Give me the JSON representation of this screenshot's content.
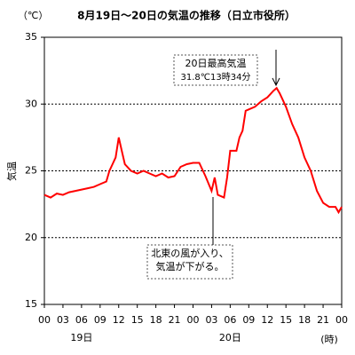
{
  "chart_data": {
    "type": "line",
    "title": "8月19日～20日の気温の推移（日立市役所）",
    "unit_label": "（℃）",
    "y_label": "気温",
    "x_label": "(時)",
    "day_labels": [
      {
        "value": 6,
        "label": "19日"
      },
      {
        "value": 30,
        "label": "20日"
      }
    ],
    "annotations": [
      {
        "lines": [
          "20日最高気温",
          "31.8℃13時34分"
        ],
        "x": 37.5,
        "y": 31.8
      },
      {
        "lines": [
          "北東の風が入り、",
          "気温が下がる。"
        ],
        "x": 27.5,
        "y": 23.5
      }
    ],
    "x": [
      0,
      1,
      2,
      3,
      4,
      5,
      6,
      7,
      8,
      9,
      10,
      10.5,
      11,
      11.5,
      12,
      12.5,
      13,
      14,
      15,
      16,
      17,
      18,
      19,
      20,
      21,
      22,
      23,
      24,
      25,
      26,
      27,
      27.5,
      28,
      29,
      29.5,
      30,
      31,
      31.5,
      32,
      32.5,
      33,
      34,
      35,
      36,
      37,
      37.5,
      38,
      39,
      40,
      41,
      42,
      43,
      44,
      45,
      46,
      47,
      47.5,
      48
    ],
    "series": [
      {
        "name": "気温",
        "color": "#ff0000",
        "values": [
          23.2,
          23.0,
          23.3,
          23.2,
          23.4,
          23.5,
          23.6,
          23.7,
          23.8,
          24.0,
          24.2,
          25.0,
          25.5,
          26.0,
          27.5,
          26.5,
          25.5,
          25.0,
          24.8,
          25.0,
          24.8,
          24.6,
          24.8,
          24.5,
          24.6,
          25.3,
          25.5,
          25.6,
          25.6,
          24.6,
          23.5,
          24.5,
          23.2,
          23.0,
          24.5,
          26.5,
          26.5,
          27.5,
          28.0,
          29.5,
          29.6,
          29.8,
          30.2,
          30.5,
          31.0,
          31.2,
          30.8,
          29.8,
          28.5,
          27.5,
          26.0,
          25.0,
          23.5,
          22.6,
          22.3,
          22.3,
          21.9,
          22.3
        ]
      }
    ],
    "xlim": [
      0,
      48
    ],
    "xticks": [
      {
        "value": 0,
        "label": "00"
      },
      {
        "value": 3,
        "label": "03"
      },
      {
        "value": 6,
        "label": "06"
      },
      {
        "value": 9,
        "label": "09"
      },
      12,
      15,
      18,
      21,
      {
        "value": 24,
        "label": "00"
      },
      {
        "value": 27,
        "label": "03"
      },
      {
        "value": 30,
        "label": "06"
      },
      {
        "value": 33,
        "label": "09"
      },
      {
        "value": 36,
        "label": "12"
      },
      {
        "value": 39,
        "label": "15"
      },
      {
        "value": 42,
        "label": "18"
      },
      {
        "value": 45,
        "label": "21"
      },
      {
        "value": 48,
        "label": "00"
      }
    ],
    "ylim": [
      15,
      35
    ],
    "yticks": [
      15,
      20,
      25,
      30,
      35
    ],
    "grid_lines": [
      20,
      25,
      30
    ]
  }
}
